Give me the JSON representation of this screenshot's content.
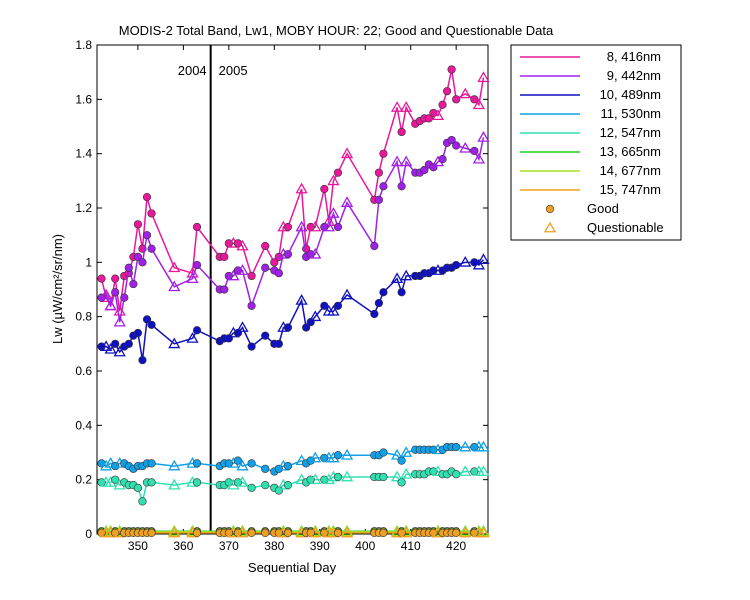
{
  "chart_data": {
    "type": "line",
    "title": "MODIS-2 Total Band,  Lw1, MOBY HOUR: 22;  Good and Questionable Data",
    "xlabel": "Sequential Day",
    "ylabel": "Lw (µW/cm²/sr/nm)",
    "xlim": [
      341,
      427
    ],
    "ylim": [
      0,
      1.8
    ],
    "xticks": [
      350,
      360,
      370,
      380,
      390,
      400,
      410,
      420
    ],
    "yticks": [
      0,
      0.2,
      0.4,
      0.6,
      0.8,
      1,
      1.2,
      1.4,
      1.6,
      1.8
    ],
    "ytick_labels": [
      "0",
      "0.2",
      "0.4",
      "0.6",
      "0.8",
      "1",
      "1.2",
      "1.4",
      "1.6",
      "1.8"
    ],
    "year_divider": {
      "x": 366,
      "labels": [
        "2004",
        "2005"
      ]
    },
    "legend": {
      "placement": "outside-right",
      "markers": [
        {
          "label": "Good",
          "marker": "circle",
          "color": "#f0a020"
        },
        {
          "label": "Questionable",
          "marker": "triangle",
          "color": "#f0a020"
        }
      ]
    },
    "x": [
      342,
      343,
      344,
      345,
      346,
      347,
      348,
      349,
      350,
      351,
      352,
      353,
      358,
      362,
      363,
      368,
      369,
      370,
      371,
      372,
      373,
      375,
      378,
      380,
      381,
      382,
      383,
      386,
      387,
      388,
      389,
      391,
      392,
      393,
      394,
      396,
      402,
      403,
      404,
      407,
      408,
      409,
      411,
      412,
      413,
      414,
      415,
      416,
      417,
      418,
      419,
      420,
      422,
      424,
      425,
      426
    ],
    "series": [
      {
        "name": "8, 416nm",
        "color": "#e8189c",
        "values": [
          0.94,
          0.87,
          0.84,
          0.94,
          0.82,
          0.95,
          0.96,
          1.02,
          1.14,
          1.05,
          1.24,
          1.18,
          0.98,
          0.96,
          1.13,
          1.02,
          1.02,
          1.07,
          1.07,
          1.07,
          1.06,
          0.95,
          1.06,
          1.0,
          1.02,
          1.13,
          1.13,
          1.27,
          1.05,
          1.13,
          1.13,
          1.27,
          1.15,
          1.3,
          1.33,
          1.4,
          1.23,
          1.33,
          1.4,
          1.57,
          1.48,
          1.57,
          1.51,
          1.52,
          1.53,
          1.53,
          1.55,
          1.54,
          1.58,
          1.63,
          1.71,
          1.6,
          1.62,
          1.6,
          1.58,
          1.68
        ]
      },
      {
        "name": "9, 442nm",
        "color": "#a020e8",
        "values": [
          0.87,
          0.88,
          0.84,
          0.89,
          0.78,
          0.87,
          0.98,
          0.92,
          1.02,
          1.0,
          1.1,
          1.05,
          0.91,
          0.94,
          0.99,
          0.9,
          0.9,
          0.95,
          0.95,
          0.97,
          0.97,
          0.84,
          0.98,
          0.97,
          0.96,
          1.03,
          1.03,
          1.13,
          1.02,
          1.03,
          1.03,
          1.13,
          1.13,
          1.18,
          1.13,
          1.22,
          1.06,
          1.23,
          1.28,
          1.37,
          1.28,
          1.37,
          1.33,
          1.33,
          1.34,
          1.36,
          1.35,
          1.37,
          1.38,
          1.44,
          1.45,
          1.43,
          1.42,
          1.41,
          1.38,
          1.46
        ]
      },
      {
        "name": "10, 489nm",
        "color": "#1010c0",
        "values": [
          0.69,
          0.69,
          0.68,
          0.7,
          0.67,
          0.69,
          0.7,
          0.73,
          0.74,
          0.64,
          0.79,
          0.77,
          0.7,
          0.72,
          0.75,
          0.71,
          0.72,
          0.72,
          0.74,
          0.74,
          0.76,
          0.69,
          0.73,
          0.7,
          0.7,
          0.76,
          0.76,
          0.86,
          0.76,
          0.78,
          0.8,
          0.84,
          0.82,
          0.82,
          0.84,
          0.88,
          0.81,
          0.85,
          0.89,
          0.94,
          0.89,
          0.95,
          0.95,
          0.95,
          0.96,
          0.96,
          0.97,
          0.97,
          0.97,
          0.98,
          0.98,
          0.99,
          1.0,
          1.0,
          0.99,
          1.01
        ]
      },
      {
        "name": "11, 530nm",
        "color": "#10a0e8",
        "values": [
          0.26,
          0.25,
          0.26,
          0.25,
          0.26,
          0.26,
          0.25,
          0.24,
          0.25,
          0.25,
          0.26,
          0.26,
          0.25,
          0.26,
          0.26,
          0.25,
          0.26,
          0.26,
          0.26,
          0.27,
          0.25,
          0.26,
          0.24,
          0.23,
          0.24,
          0.25,
          0.25,
          0.27,
          0.26,
          0.27,
          0.28,
          0.28,
          0.28,
          0.28,
          0.29,
          0.29,
          0.29,
          0.29,
          0.3,
          0.29,
          0.27,
          0.3,
          0.31,
          0.31,
          0.31,
          0.31,
          0.31,
          0.31,
          0.31,
          0.32,
          0.32,
          0.32,
          0.32,
          0.32,
          0.32,
          0.32
        ]
      },
      {
        "name": "12, 547nm",
        "color": "#30e0b0",
        "values": [
          0.19,
          0.19,
          0.19,
          0.2,
          0.18,
          0.19,
          0.18,
          0.18,
          0.17,
          0.12,
          0.19,
          0.19,
          0.18,
          0.19,
          0.19,
          0.18,
          0.18,
          0.19,
          0.18,
          0.19,
          0.19,
          0.17,
          0.18,
          0.17,
          0.16,
          0.18,
          0.18,
          0.2,
          0.19,
          0.2,
          0.2,
          0.2,
          0.2,
          0.21,
          0.21,
          0.21,
          0.21,
          0.21,
          0.21,
          0.21,
          0.19,
          0.22,
          0.22,
          0.22,
          0.22,
          0.23,
          0.23,
          0.23,
          0.22,
          0.22,
          0.23,
          0.22,
          0.23,
          0.23,
          0.23,
          0.23
        ]
      },
      {
        "name": "13, 665nm",
        "color": "#20d020",
        "values": [
          0.01,
          0.01,
          0.01,
          0.01,
          0.01,
          0.01,
          0.01,
          0.01,
          0.01,
          0.01,
          0.01,
          0.01,
          0.01,
          0.01,
          0.01,
          0.01,
          0.01,
          0.01,
          0.01,
          0.01,
          0.01,
          0.01,
          0.01,
          0.01,
          0.01,
          0.01,
          0.01,
          0.01,
          0.01,
          0.01,
          0.01,
          0.01,
          0.01,
          0.01,
          0.01,
          0.01,
          0.01,
          0.01,
          0.01,
          0.01,
          0.01,
          0.01,
          0.01,
          0.01,
          0.01,
          0.01,
          0.01,
          0.01,
          0.01,
          0.01,
          0.01,
          0.01,
          0.01,
          0.01,
          0.01,
          0.01
        ]
      },
      {
        "name": "14, 677nm",
        "color": "#a8e020",
        "values": [
          0.008,
          0.008,
          0.008,
          0.008,
          0.008,
          0.008,
          0.008,
          0.008,
          0.008,
          0.008,
          0.008,
          0.008,
          0.008,
          0.008,
          0.008,
          0.008,
          0.008,
          0.008,
          0.008,
          0.008,
          0.008,
          0.008,
          0.008,
          0.008,
          0.008,
          0.008,
          0.008,
          0.008,
          0.008,
          0.008,
          0.008,
          0.008,
          0.008,
          0.008,
          0.008,
          0.008,
          0.008,
          0.008,
          0.008,
          0.008,
          0.008,
          0.008,
          0.008,
          0.008,
          0.008,
          0.008,
          0.008,
          0.008,
          0.008,
          0.008,
          0.008,
          0.008,
          0.008,
          0.008,
          0.008,
          0.008
        ]
      },
      {
        "name": "15, 747nm",
        "color": "#f0a020",
        "values": [
          0.004,
          0.004,
          0.004,
          0.004,
          0.004,
          0.004,
          0.004,
          0.004,
          0.004,
          0.004,
          0.004,
          0.004,
          0.004,
          0.004,
          0.004,
          0.004,
          0.004,
          0.004,
          0.004,
          0.004,
          0.004,
          0.004,
          0.004,
          0.004,
          0.004,
          0.004,
          0.004,
          0.004,
          0.004,
          0.004,
          0.004,
          0.004,
          0.004,
          0.004,
          0.004,
          0.004,
          0.004,
          0.004,
          0.004,
          0.004,
          0.004,
          0.004,
          0.004,
          0.004,
          0.004,
          0.004,
          0.004,
          0.004,
          0.004,
          0.004,
          0.004,
          0.004,
          0.004,
          0.004,
          0.004,
          0.004
        ]
      }
    ],
    "questionable_days": [
      343,
      344,
      346,
      358,
      362,
      371,
      373,
      382,
      386,
      389,
      392,
      393,
      396,
      407,
      409,
      416,
      422,
      425,
      426
    ]
  }
}
